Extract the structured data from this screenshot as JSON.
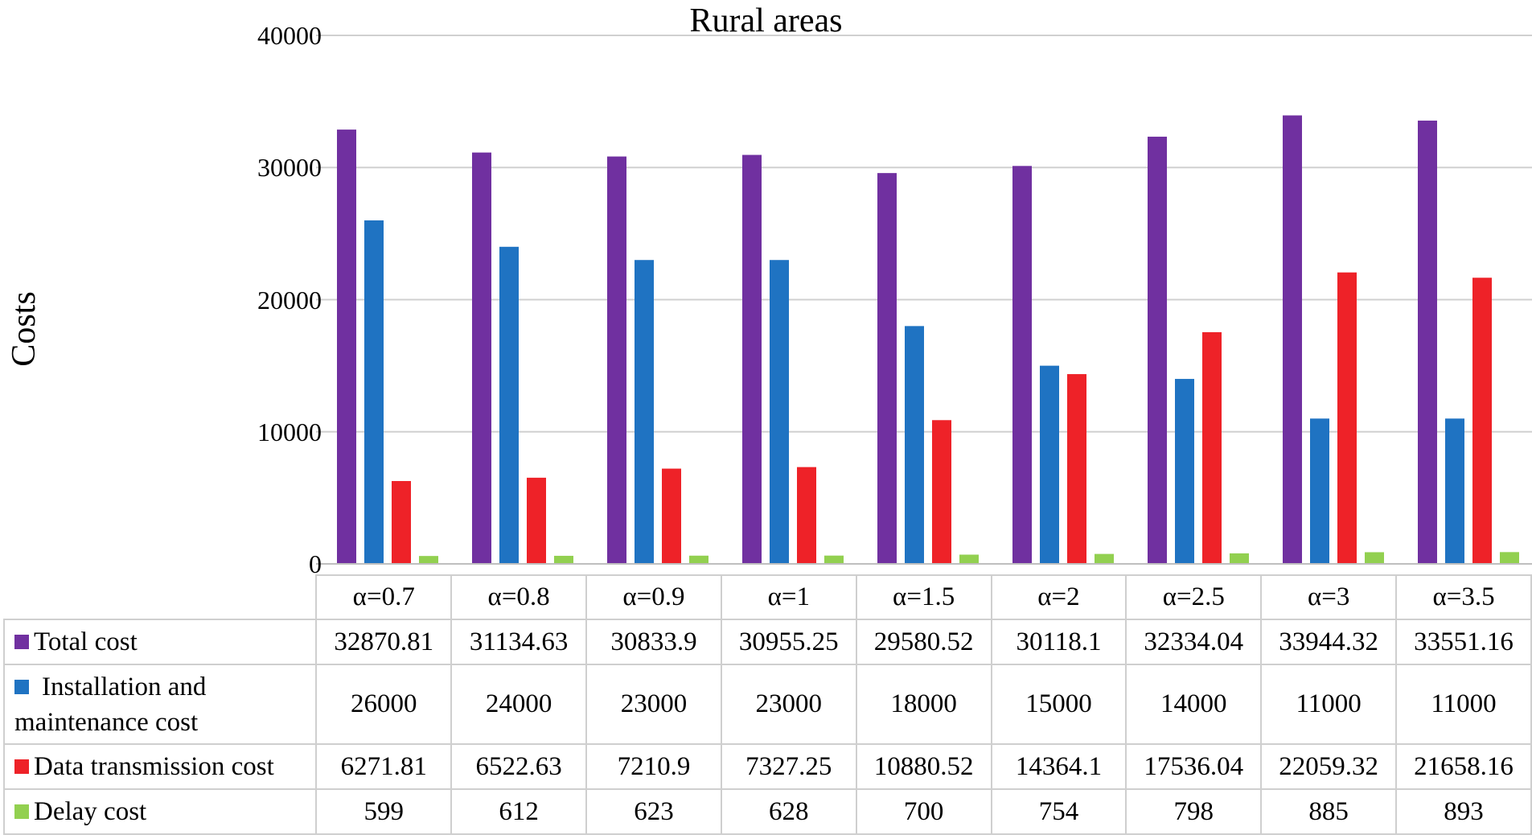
{
  "chart_data": {
    "type": "bar",
    "title": "Rural areas",
    "xlabel": "",
    "ylabel": "Costs",
    "ylim": [
      0,
      40000
    ],
    "yticks": [
      "0",
      "10000",
      "20000",
      "30000",
      "40000"
    ],
    "grid": true,
    "legend": "data table below chart",
    "categories": [
      "α=0.7",
      "α=0.8",
      "α=0.9",
      "α=1",
      "α=1.5",
      "α=2",
      "α=2.5",
      "α=3",
      "α=3.5"
    ],
    "series": [
      {
        "name": "Total cost",
        "color": "#7030a0",
        "values": [
          32870.81,
          31134.63,
          30833.9,
          30955.25,
          29580.52,
          30118.1,
          32334.04,
          33944.32,
          33551.16
        ],
        "labels": [
          "32870.81",
          "31134.63",
          "30833.9",
          "30955.25",
          "29580.52",
          "30118.1",
          "32334.04",
          "33944.32",
          "33551.16"
        ]
      },
      {
        "name": "Installation and maintenance cost",
        "name_lines": [
          "Installation and",
          "maintenance cost"
        ],
        "color": "#1f73c2",
        "values": [
          26000,
          24000,
          23000,
          23000,
          18000,
          15000,
          14000,
          11000,
          11000
        ],
        "labels": [
          "26000",
          "24000",
          "23000",
          "23000",
          "18000",
          "15000",
          "14000",
          "11000",
          "11000"
        ]
      },
      {
        "name": "Data transmission cost",
        "color": "#ee2228",
        "values": [
          6271.81,
          6522.63,
          7210.9,
          7327.25,
          10880.52,
          14364.1,
          17536.04,
          22059.32,
          21658.16
        ],
        "labels": [
          "6271.81",
          "6522.63",
          "7210.9",
          "7327.25",
          "10880.52",
          "14364.1",
          "17536.04",
          "22059.32",
          "21658.16"
        ]
      },
      {
        "name": "Delay cost",
        "color": "#92d050",
        "values": [
          599,
          612,
          623,
          628,
          700,
          754,
          798,
          885,
          893
        ],
        "labels": [
          "599",
          "612",
          "623",
          "628",
          "700",
          "754",
          "798",
          "885",
          "893"
        ]
      }
    ]
  }
}
